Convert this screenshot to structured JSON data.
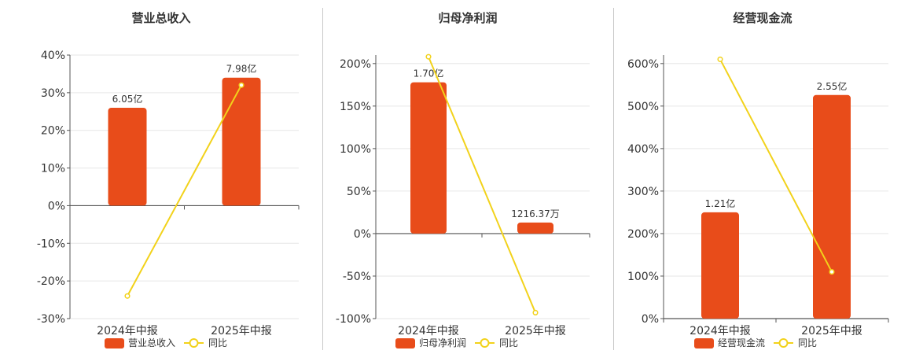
{
  "colors": {
    "bar": "#E84C1A",
    "line": "#F2D21B",
    "axis": "#555555",
    "grid": "#e6e6e6"
  },
  "chart_data": [
    {
      "type": "bar",
      "title": "营业总收入",
      "categories": [
        "2024年中报",
        "2025年中报"
      ],
      "series": [
        {
          "name": "营业总收入",
          "type": "bar",
          "values": [
            26,
            34
          ],
          "value_labels": [
            "6.05亿",
            "7.98亿"
          ]
        },
        {
          "name": "同比",
          "type": "line",
          "values": [
            -24,
            32
          ]
        }
      ],
      "ylim": [
        -30,
        40
      ],
      "yticks": [
        40,
        30,
        20,
        10,
        0,
        -10,
        -20,
        -30
      ],
      "ytick_labels": [
        "40%",
        "30%",
        "20%",
        "10%",
        "0%",
        "-10%",
        "-20%",
        "-30%"
      ],
      "legend": "bottom",
      "grid": true
    },
    {
      "type": "bar",
      "title": "归母净利润",
      "categories": [
        "2024年中报",
        "2025年中报"
      ],
      "series": [
        {
          "name": "归母净利润",
          "type": "bar",
          "values": [
            178,
            13
          ],
          "value_labels": [
            "1.70亿",
            "1216.37万"
          ]
        },
        {
          "name": "同比",
          "type": "line",
          "values": [
            208,
            -93
          ]
        }
      ],
      "ylim": [
        -100,
        210
      ],
      "yticks": [
        200,
        150,
        100,
        50,
        0,
        -50,
        -100
      ],
      "ytick_labels": [
        "200%",
        "150%",
        "100%",
        "50%",
        "0%",
        "-50%",
        "-100%"
      ],
      "legend": "bottom",
      "grid": true
    },
    {
      "type": "bar",
      "title": "经营现金流",
      "categories": [
        "2024年中报",
        "2025年中报"
      ],
      "series": [
        {
          "name": "经营现金流",
          "type": "bar",
          "values": [
            250,
            526
          ],
          "value_labels": [
            "1.21亿",
            "2.55亿"
          ]
        },
        {
          "name": "同比",
          "type": "line",
          "values": [
            610,
            110
          ]
        }
      ],
      "ylim": [
        0,
        620
      ],
      "yticks": [
        600,
        500,
        400,
        300,
        200,
        100,
        0
      ],
      "ytick_labels": [
        "600%",
        "500%",
        "400%",
        "300%",
        "200%",
        "100%",
        "0%"
      ],
      "legend": "bottom",
      "grid": true
    }
  ]
}
